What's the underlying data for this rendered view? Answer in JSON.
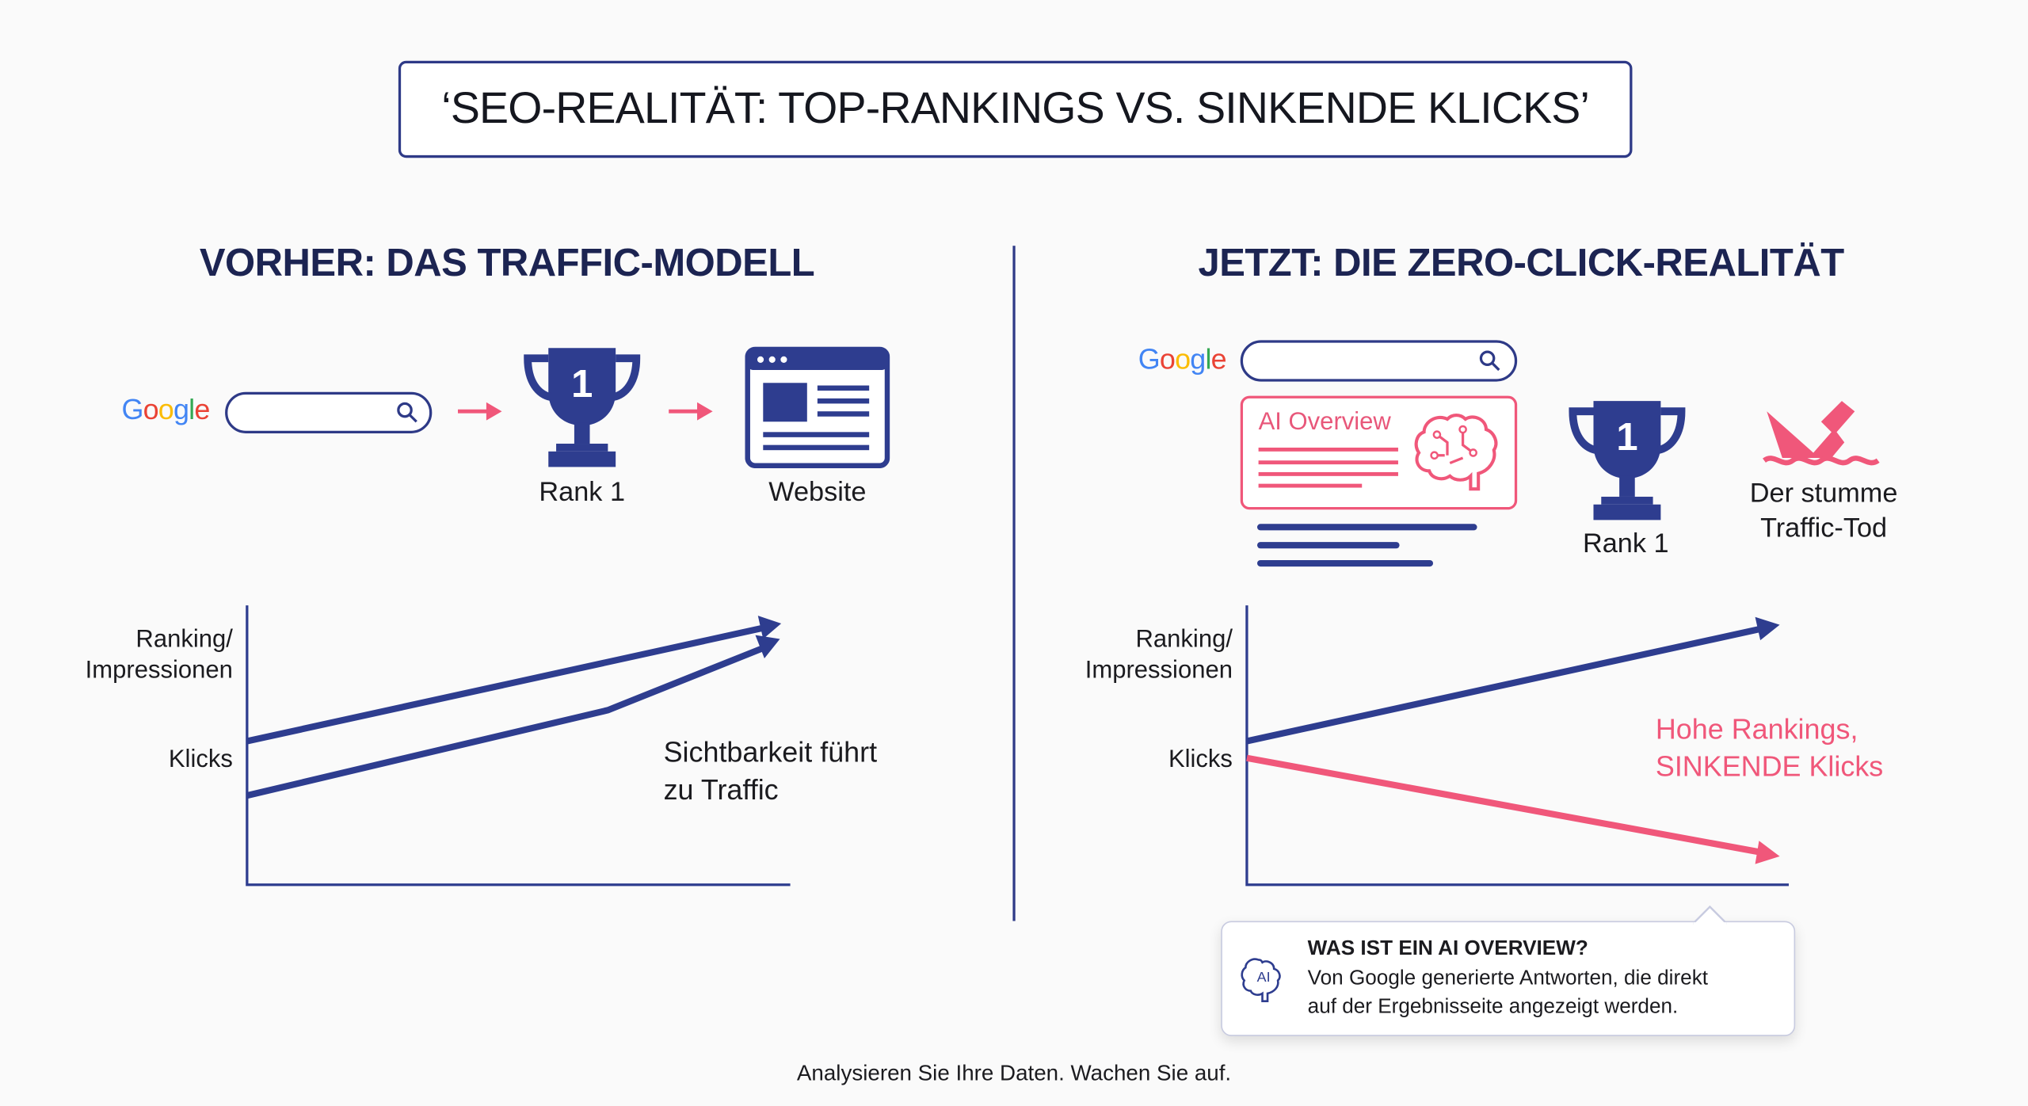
{
  "title": "‘SEO-REALITÄT: TOP-RANKINGS VS. SINKENDE KLICKS’",
  "colors": {
    "navy": "#2e3d8f",
    "pink": "#f0577a",
    "text": "#1b1b1f"
  },
  "left": {
    "heading": "VORHER: DAS TRAFFIC-MODELL",
    "google_logo": "Google",
    "rank_label": "Rank 1",
    "trophy_number": "1",
    "website_label": "Website",
    "chart": {
      "y_label_top_1": "Ranking/",
      "y_label_top_2": "Impressionen",
      "y_label_bottom": "Klicks",
      "annotation_1": "Sichtbarkeit führt",
      "annotation_2": "zu Traffic",
      "series": [
        {
          "trend": "rising"
        },
        {
          "trend": "rising"
        }
      ]
    }
  },
  "right": {
    "heading": "JETZT: DIE ZERO-CLICK-REALITÄT",
    "google_logo": "Google",
    "ai_overview_label": "AI Overview",
    "rank_label": "Rank 1",
    "trophy_number": "1",
    "sinking_label_1": "Der stumme",
    "sinking_label_2": "Traffic-Tod",
    "chart": {
      "y_label_top_1": "Ranking/",
      "y_label_top_2": "Impressionen",
      "y_label_bottom": "Klicks",
      "annotation_1": "Hohe Rankings,",
      "annotation_2": "SINKENDE Klicks",
      "series": [
        {
          "trend": "rising"
        },
        {
          "trend": "falling"
        }
      ]
    }
  },
  "tooltip": {
    "icon_text": "AI",
    "title": "WAS IST EIN AI OVERVIEW?",
    "line_1": "Von Google generierte Antworten, die direkt",
    "line_2": "auf der Ergebnisseite angezeigt werden."
  },
  "footer": "Analysieren Sie Ihre Daten. Wachen Sie auf."
}
